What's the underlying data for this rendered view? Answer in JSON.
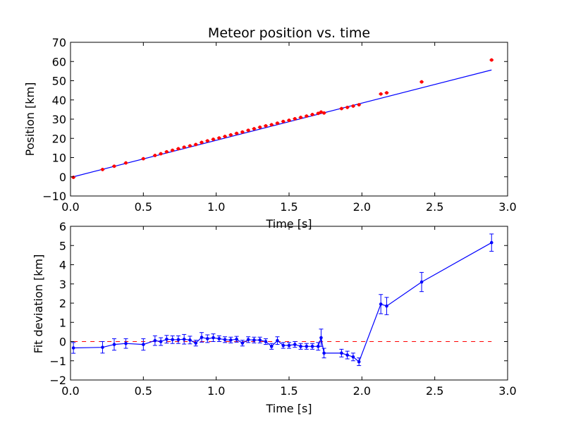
{
  "chart_data": [
    {
      "type": "scatter",
      "title": "Meteor position vs. time",
      "xlabel": "Time [s]",
      "ylabel": "Position [km]",
      "xlim": [
        0.0,
        3.0
      ],
      "ylim": [
        -10,
        70
      ],
      "xticks": [
        "0.0",
        "0.5",
        "1.0",
        "1.5",
        "2.0",
        "2.5",
        "3.0"
      ],
      "yticks": [
        "−10",
        "0",
        "10",
        "20",
        "30",
        "40",
        "50",
        "60",
        "70"
      ],
      "grid": false,
      "colors": {
        "points": "#ff0000",
        "fit_line": "#0000ff"
      },
      "series": [
        {
          "x": [
            0.02,
            0.22,
            0.3,
            0.38,
            0.5,
            0.58,
            0.62,
            0.66,
            0.7,
            0.74,
            0.78,
            0.82,
            0.86,
            0.9,
            0.94,
            0.98,
            1.02,
            1.06,
            1.1,
            1.14,
            1.18,
            1.22,
            1.26,
            1.3,
            1.34,
            1.38,
            1.42,
            1.46,
            1.5,
            1.54,
            1.58,
            1.62,
            1.66,
            1.7,
            1.72,
            1.74,
            1.86,
            1.9,
            1.94,
            1.98,
            2.13,
            2.17,
            2.41,
            2.89
          ],
          "y": [
            -0.3,
            3.8,
            5.5,
            7.2,
            9.4,
            11.1,
            12.0,
            13.0,
            13.8,
            14.6,
            15.4,
            16.1,
            16.8,
            17.9,
            18.7,
            19.5,
            20.2,
            21.0,
            21.8,
            22.6,
            23.3,
            24.2,
            25.0,
            25.8,
            26.5,
            27.1,
            27.9,
            28.8,
            29.4,
            30.2,
            30.9,
            31.6,
            32.4,
            33.0,
            33.7,
            33.2,
            35.5,
            36.1,
            36.8,
            37.5,
            43.1,
            43.7,
            49.4,
            60.8
          ]
        }
      ],
      "fit_line": {
        "x": [
          0.02,
          2.89
        ],
        "y": [
          0.0,
          55.6
        ]
      }
    },
    {
      "type": "line",
      "title": "",
      "xlabel": "Time [s]",
      "ylabel": "Fit deviation [km]",
      "xlim": [
        0.0,
        3.0
      ],
      "ylim": [
        -2,
        6
      ],
      "xticks": [
        "0.0",
        "0.5",
        "1.0",
        "1.5",
        "2.0",
        "2.5",
        "3.0"
      ],
      "yticks": [
        "−2",
        "−1",
        "0",
        "1",
        "2",
        "3",
        "4",
        "5",
        "6"
      ],
      "grid": false,
      "colors": {
        "series": "#0000ff",
        "reference": "#ff0000"
      },
      "reference_line": {
        "y": 0,
        "style": "dashed"
      },
      "series": [
        {
          "x": [
            0.02,
            0.22,
            0.3,
            0.38,
            0.5,
            0.58,
            0.62,
            0.66,
            0.7,
            0.74,
            0.78,
            0.82,
            0.86,
            0.9,
            0.94,
            0.98,
            1.02,
            1.06,
            1.1,
            1.14,
            1.18,
            1.22,
            1.26,
            1.3,
            1.34,
            1.38,
            1.42,
            1.46,
            1.5,
            1.54,
            1.58,
            1.62,
            1.66,
            1.7,
            1.72,
            1.74,
            1.86,
            1.9,
            1.94,
            1.98,
            2.13,
            2.17,
            2.41,
            2.89
          ],
          "y": [
            -0.33,
            -0.3,
            -0.15,
            -0.1,
            -0.15,
            0.05,
            0.0,
            0.12,
            0.1,
            0.1,
            0.12,
            0.08,
            -0.08,
            0.22,
            0.15,
            0.2,
            0.15,
            0.1,
            0.08,
            0.12,
            -0.08,
            0.1,
            0.08,
            0.08,
            0.0,
            -0.25,
            0.05,
            -0.2,
            -0.2,
            -0.15,
            -0.25,
            -0.25,
            -0.25,
            -0.25,
            0.2,
            -0.6,
            -0.6,
            -0.7,
            -0.8,
            -1.05,
            1.95,
            1.85,
            3.1,
            5.15
          ],
          "yerr": [
            0.28,
            0.3,
            0.3,
            0.25,
            0.3,
            0.25,
            0.2,
            0.2,
            0.2,
            0.2,
            0.25,
            0.2,
            0.15,
            0.25,
            0.2,
            0.2,
            0.15,
            0.15,
            0.15,
            0.15,
            0.15,
            0.15,
            0.15,
            0.15,
            0.15,
            0.15,
            0.2,
            0.15,
            0.15,
            0.15,
            0.15,
            0.15,
            0.15,
            0.2,
            0.45,
            0.25,
            0.2,
            0.2,
            0.2,
            0.2,
            0.5,
            0.45,
            0.5,
            0.45
          ]
        }
      ]
    }
  ]
}
